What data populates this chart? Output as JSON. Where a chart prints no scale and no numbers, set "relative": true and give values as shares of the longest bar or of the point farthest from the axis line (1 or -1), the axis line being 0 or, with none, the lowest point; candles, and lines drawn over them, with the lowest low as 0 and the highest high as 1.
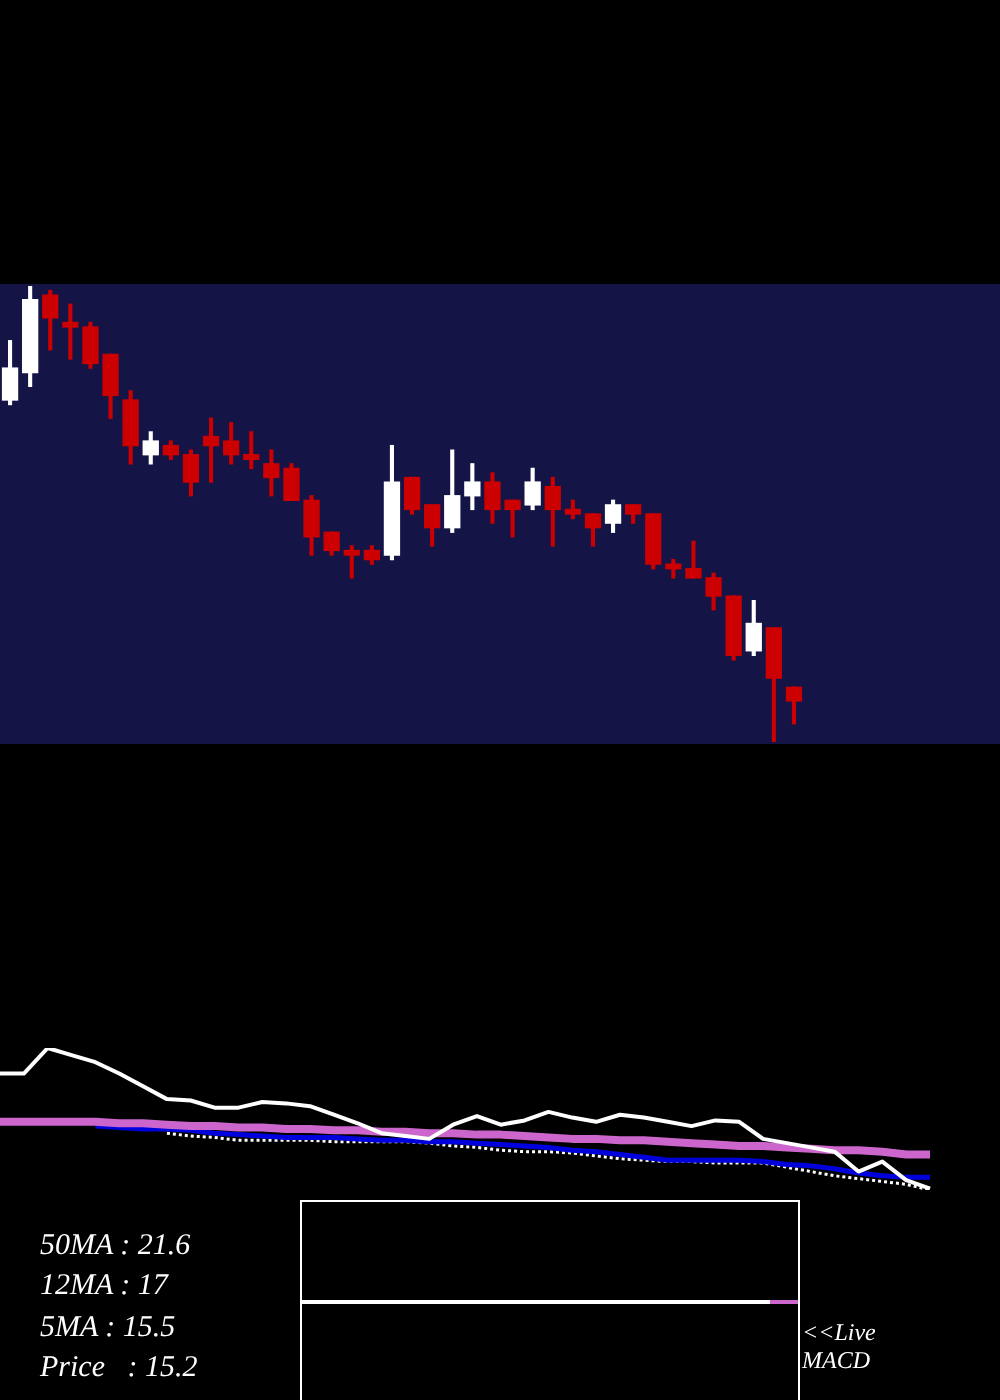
{
  "chart_data": [
    {
      "type": "candlestick",
      "relative": true,
      "categories": [
        null,
        null,
        null,
        null,
        null,
        null,
        null,
        null,
        null,
        null,
        null,
        null,
        null,
        null,
        null,
        null,
        null,
        null,
        null,
        null,
        null,
        null,
        null,
        null,
        null,
        null,
        null,
        null,
        null,
        null,
        null,
        null,
        null,
        null,
        null,
        null,
        null,
        null,
        null,
        null
      ],
      "ohlc": [
        [
          0.75,
          0.88,
          0.74,
          0.82
        ],
        [
          0.81,
          1.0,
          0.78,
          0.97
        ],
        [
          0.98,
          0.99,
          0.86,
          0.93
        ],
        [
          0.92,
          0.96,
          0.84,
          0.91
        ],
        [
          0.91,
          0.92,
          0.82,
          0.83
        ],
        [
          0.85,
          0.85,
          0.71,
          0.76
        ],
        [
          0.75,
          0.77,
          0.61,
          0.65
        ],
        [
          0.63,
          0.68,
          0.61,
          0.66
        ],
        [
          0.65,
          0.66,
          0.62,
          0.63
        ],
        [
          0.63,
          0.64,
          0.54,
          0.57
        ],
        [
          0.67,
          0.71,
          0.57,
          0.65
        ],
        [
          0.66,
          0.7,
          0.61,
          0.63
        ],
        [
          0.63,
          0.68,
          0.6,
          0.62
        ],
        [
          0.61,
          0.64,
          0.54,
          0.58
        ],
        [
          0.6,
          0.61,
          0.53,
          0.53
        ],
        [
          0.53,
          0.54,
          0.41,
          0.45
        ],
        [
          0.46,
          0.46,
          0.41,
          0.42
        ],
        [
          0.42,
          0.43,
          0.36,
          0.41
        ],
        [
          0.42,
          0.43,
          0.39,
          0.4
        ],
        [
          0.41,
          0.65,
          0.4,
          0.57
        ],
        [
          0.58,
          0.58,
          0.5,
          0.51
        ],
        [
          0.52,
          0.52,
          0.43,
          0.47
        ],
        [
          0.47,
          0.64,
          0.46,
          0.54
        ],
        [
          0.54,
          0.61,
          0.51,
          0.57
        ],
        [
          0.57,
          0.59,
          0.48,
          0.51
        ],
        [
          0.53,
          0.53,
          0.45,
          0.51
        ],
        [
          0.52,
          0.6,
          0.51,
          0.57
        ],
        [
          0.56,
          0.58,
          0.43,
          0.51
        ],
        [
          0.51,
          0.53,
          0.49,
          0.5
        ],
        [
          0.5,
          0.5,
          0.43,
          0.47
        ],
        [
          0.48,
          0.53,
          0.46,
          0.52
        ],
        [
          0.52,
          0.52,
          0.48,
          0.5
        ],
        [
          0.5,
          0.5,
          0.38,
          0.39
        ],
        [
          0.39,
          0.4,
          0.36,
          0.38
        ],
        [
          0.38,
          0.44,
          0.36,
          0.36
        ],
        [
          0.36,
          0.37,
          0.29,
          0.32
        ],
        [
          0.32,
          0.32,
          0.18,
          0.19
        ],
        [
          0.2,
          0.31,
          0.19,
          0.26
        ],
        [
          0.25,
          0.25,
          0.0,
          0.14
        ],
        [
          0.12,
          0.12,
          0.04,
          0.09
        ]
      ],
      "colors": [
        "#ffffff",
        "#ffffff",
        "#cc0000",
        "#cc0000",
        "#cc0000",
        "#cc0000",
        "#cc0000",
        "#ffffff",
        "#cc0000",
        "#cc0000",
        "#cc0000",
        "#cc0000",
        "#cc0000",
        "#cc0000",
        "#cc0000",
        "#cc0000",
        "#cc0000",
        "#cc0000",
        "#cc0000",
        "#ffffff",
        "#cc0000",
        "#cc0000",
        "#ffffff",
        "#ffffff",
        "#cc0000",
        "#cc0000",
        "#ffffff",
        "#cc0000",
        "#cc0000",
        "#cc0000",
        "#ffffff",
        "#cc0000",
        "#cc0000",
        "#cc0000",
        "#cc0000",
        "#cc0000",
        "#cc0000",
        "#ffffff",
        "#cc0000",
        "#cc0000"
      ]
    },
    {
      "type": "line",
      "relative": true,
      "categories": [
        null,
        null,
        null,
        null,
        null,
        null,
        null,
        null,
        null,
        null,
        null,
        null,
        null,
        null,
        null,
        null,
        null,
        null,
        null,
        null,
        null,
        null,
        null,
        null,
        null,
        null,
        null,
        null,
        null,
        null,
        null,
        null,
        null,
        null,
        null,
        null,
        null,
        null,
        null,
        null
      ],
      "series": [
        {
          "color": "#ffffff",
          "values": [
            0.82,
            0.82,
            1.0,
            0.95,
            0.9,
            0.82,
            0.73,
            0.64,
            0.63,
            0.58,
            0.58,
            0.62,
            0.61,
            0.59,
            0.53,
            0.47,
            0.4,
            0.38,
            0.36,
            0.46,
            0.52,
            0.46,
            0.49,
            0.55,
            0.51,
            0.48,
            0.53,
            0.51,
            0.48,
            0.45,
            0.49,
            0.48,
            0.36,
            0.33,
            0.3,
            0.27,
            0.13,
            0.2,
            0.07,
            0.01
          ]
        },
        {
          "color": "#cc66cc",
          "values": [
            0.48,
            0.48,
            0.48,
            0.48,
            0.48,
            0.47,
            0.47,
            0.46,
            0.45,
            0.45,
            0.44,
            0.44,
            0.43,
            0.43,
            0.42,
            0.42,
            0.41,
            0.41,
            0.4,
            0.4,
            0.39,
            0.39,
            0.38,
            0.37,
            0.36,
            0.36,
            0.35,
            0.35,
            0.34,
            0.33,
            0.32,
            0.31,
            0.31,
            0.3,
            0.29,
            0.28,
            0.28,
            0.27,
            0.25,
            0.25
          ]
        },
        {
          "color": "#0000dd",
          "values": [
            null,
            null,
            null,
            null,
            0.45,
            0.44,
            0.43,
            0.43,
            0.42,
            0.4,
            0.39,
            0.38,
            0.37,
            0.37,
            0.37,
            0.36,
            0.35,
            0.35,
            0.34,
            0.34,
            0.33,
            0.32,
            0.31,
            0.3,
            0.28,
            0.27,
            0.25,
            0.23,
            0.21,
            0.21,
            0.21,
            0.21,
            0.2,
            0.18,
            0.17,
            0.15,
            0.12,
            0.1,
            0.09,
            0.09
          ]
        },
        {
          "color": "#ffffff",
          "line_style": "dotted",
          "values": [
            null,
            null,
            null,
            null,
            null,
            null,
            null,
            0.4,
            0.38,
            0.37,
            0.35,
            0.35,
            0.35,
            0.35,
            0.34,
            0.34,
            0.34,
            0.34,
            0.33,
            0.31,
            0.3,
            0.28,
            0.27,
            0.27,
            0.26,
            0.24,
            0.22,
            0.21,
            0.2,
            0.2,
            0.19,
            0.19,
            0.19,
            0.16,
            0.13,
            0.1,
            0.08,
            0.06,
            0.04,
            0.0
          ]
        }
      ]
    },
    {
      "type": "other",
      "annotations": [
        "<<Live MACD"
      ]
    },
    {
      "type": "other",
      "annotations": [
        "50MA : 21.6",
        "12MA : 17",
        "5MA : 15.5",
        "Price   : 15.2"
      ]
    }
  ]
}
